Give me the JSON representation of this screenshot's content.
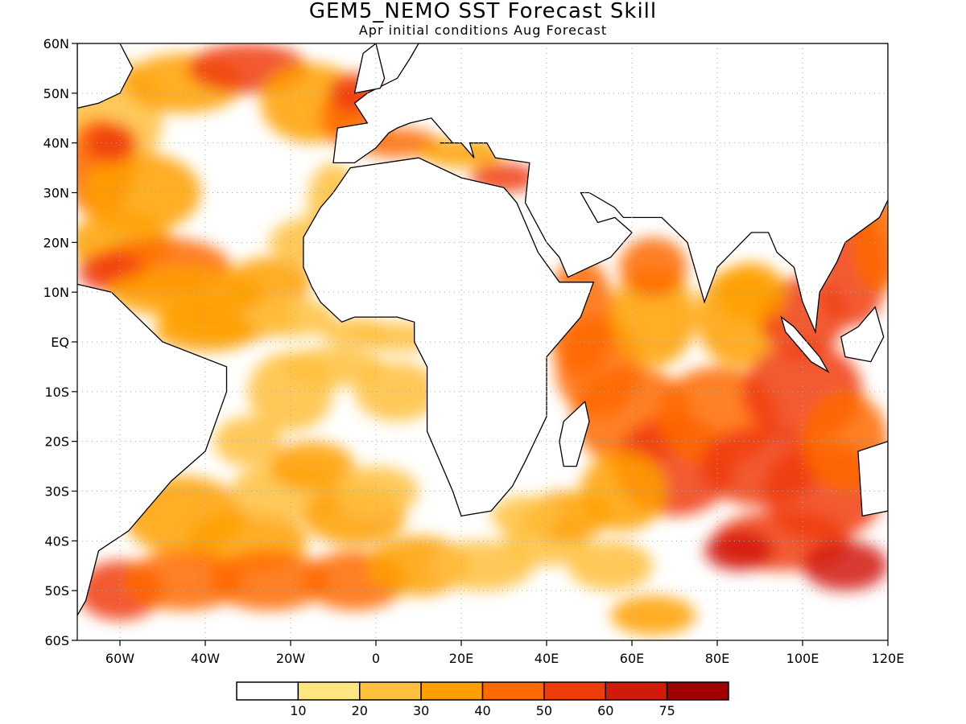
{
  "title": "GEM5_NEMO SST Forecast Skill",
  "subtitle": "Apr initial conditions  Aug Forecast",
  "colors": {
    "land": "#ffffff",
    "coast": "#000000",
    "grid": "#aaaaaa",
    "bins": [
      "#ffffff",
      "#ffe680",
      "#ffc03c",
      "#ffa000",
      "#ff6a00",
      "#f03c0a",
      "#d21a0a",
      "#a00000"
    ]
  },
  "map": {
    "lat_ticks": [
      "60N",
      "50N",
      "40N",
      "30N",
      "20N",
      "10N",
      "EQ",
      "10S",
      "20S",
      "30S",
      "40S",
      "50S",
      "60S"
    ],
    "lon_ticks": [
      "60W",
      "40W",
      "20W",
      "0",
      "20E",
      "40E",
      "60E",
      "80E",
      "100E",
      "120E"
    ],
    "lon_range": [
      -70,
      120
    ],
    "lat_range": [
      -60,
      60
    ]
  },
  "colorbar": {
    "labels": [
      "10",
      "20",
      "30",
      "40",
      "50",
      "60",
      "75"
    ]
  }
}
